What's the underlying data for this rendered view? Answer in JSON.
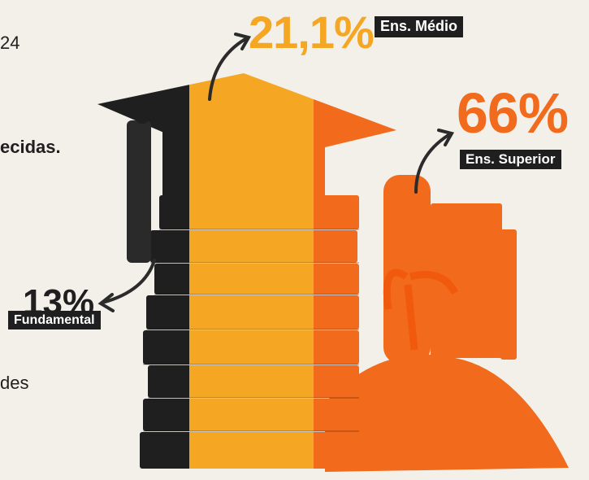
{
  "text_fragments": {
    "line1": "24",
    "line2": "ecidas.",
    "line3": "des"
  },
  "stats": [
    {
      "value": "21,1%",
      "label": "Ens. Médio"
    },
    {
      "value": "66%",
      "label": "Ens. Superior"
    },
    {
      "value": "13%",
      "label": "Fundamental"
    }
  ],
  "colors": {
    "background": "#f3f0ea",
    "black_segment": "#1f1f1f",
    "medio": "#f5a623",
    "superior": "#f26a1b",
    "label_bg": "#1f1f1f"
  }
}
